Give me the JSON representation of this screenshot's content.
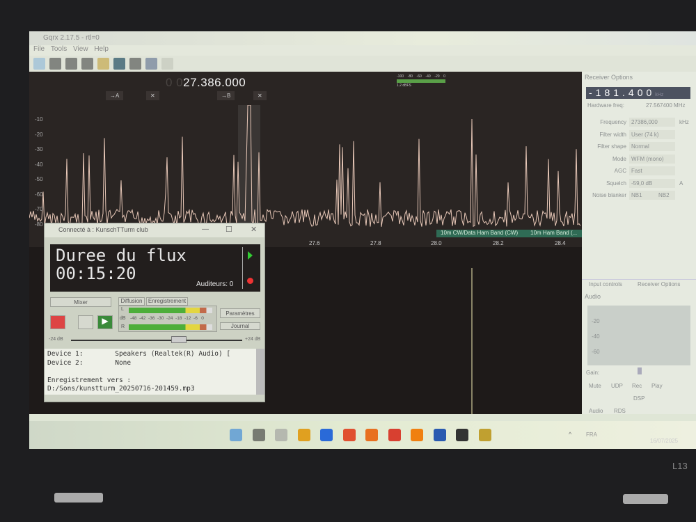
{
  "app": {
    "title": "Gqrx 2.17.5 - rtl=0",
    "menu": [
      "File",
      "Tools",
      "View",
      "Help"
    ],
    "toolbar_icons": [
      "play-icon",
      "device-icon",
      "open-folder-icon",
      "save-icon",
      "bookmark-icon",
      "waveform-icon",
      "network-icon",
      "tools-icon",
      "fullscreen-icon"
    ]
  },
  "plot": {
    "freq_prefix": "0 0",
    "frequency": "27.386.000",
    "vfo_a": "→A",
    "vfo_b": "→B",
    "close": "✕",
    "y_ticks": [
      "-10",
      "-20",
      "-30",
      "-40",
      "-50",
      "-60",
      "-70",
      "-80"
    ],
    "x_ticks": [
      "27.6",
      "27.8",
      "28.0",
      "28.2",
      "28.4"
    ],
    "bands": [
      "10m CW/Data Ham Band (CW)",
      "10m Ham Band (..."
    ],
    "level_ticks": [
      "-100",
      "-80",
      "-60",
      "-40",
      "-20",
      "0"
    ],
    "level_value": "1.2 dBFS"
  },
  "receiver": {
    "title": "Receiver Options",
    "offset": "-181.400",
    "offset_unit": "kHz",
    "hw_label": "Hardware freq:",
    "hw_value": "27.567400 MHz",
    "rows": [
      {
        "label": "Frequency",
        "value": "27386,000",
        "unit": "kHz"
      },
      {
        "label": "Filter width",
        "value": "User (74 k)"
      },
      {
        "label": "Filter shape",
        "value": "Normal"
      },
      {
        "label": "Mode",
        "value": "WFM (mono)"
      },
      {
        "label": "AGC",
        "value": "Fast"
      },
      {
        "label": "Squelch",
        "value": "-59,0 dB",
        "a": "A"
      },
      {
        "label": "Noise blanker",
        "value": "NB1",
        "b": "NB2"
      }
    ],
    "tabs": [
      "Input controls",
      "Receiver Options"
    ]
  },
  "audio": {
    "title": "Audio",
    "ticks": [
      "-20",
      "-40",
      "-60"
    ],
    "gain": "Gain:",
    "buttons": [
      "Mute",
      "UDP",
      "Rec",
      "Play"
    ],
    "dsp": "DSP",
    "tabs": [
      "Audio",
      "RDS"
    ]
  },
  "caster": {
    "title": "Connecté à : KunschTTurm club",
    "lcd_line1": "Duree du flux",
    "lcd_line2": "00:15:20",
    "listeners": "Auditeurs: 0",
    "mixer": "Mixer",
    "tabs": [
      "Diffusion",
      "Enregistrement"
    ],
    "db_label": "dB",
    "L": "L",
    "R": "R",
    "scale": "-48  -42  -36  -30  -24  -18  -12  -6   0",
    "params": "Paramètres",
    "journal": "Journal",
    "vol_min": "-24 dB",
    "vol_max": "+24 dB",
    "volume_db": 0,
    "log": "Device 1:        Speakers (Realtek(R) Audio) [\nDevice 2:        None\n\nEnregistrement vers :\nD:/Sons/kunstturm_20250716-201459.mp3"
  },
  "taskbar": {
    "lang": "FRA",
    "date": "16/07/2025",
    "icons": [
      "start-icon",
      "search-icon",
      "widgets-icon",
      "file-explorer-icon",
      "thunderbird-icon",
      "brave-icon",
      "firefox-icon",
      "chrome-icon",
      "vlc-icon",
      "word-icon",
      "gqrx-icon",
      "butt-icon"
    ]
  },
  "laptop": {
    "model": "L13"
  },
  "colors": {
    "bezel": "#1e1e20",
    "plot_bg": "#2a2523",
    "trace": "#e8c8b8",
    "band": "#2f6b55"
  }
}
